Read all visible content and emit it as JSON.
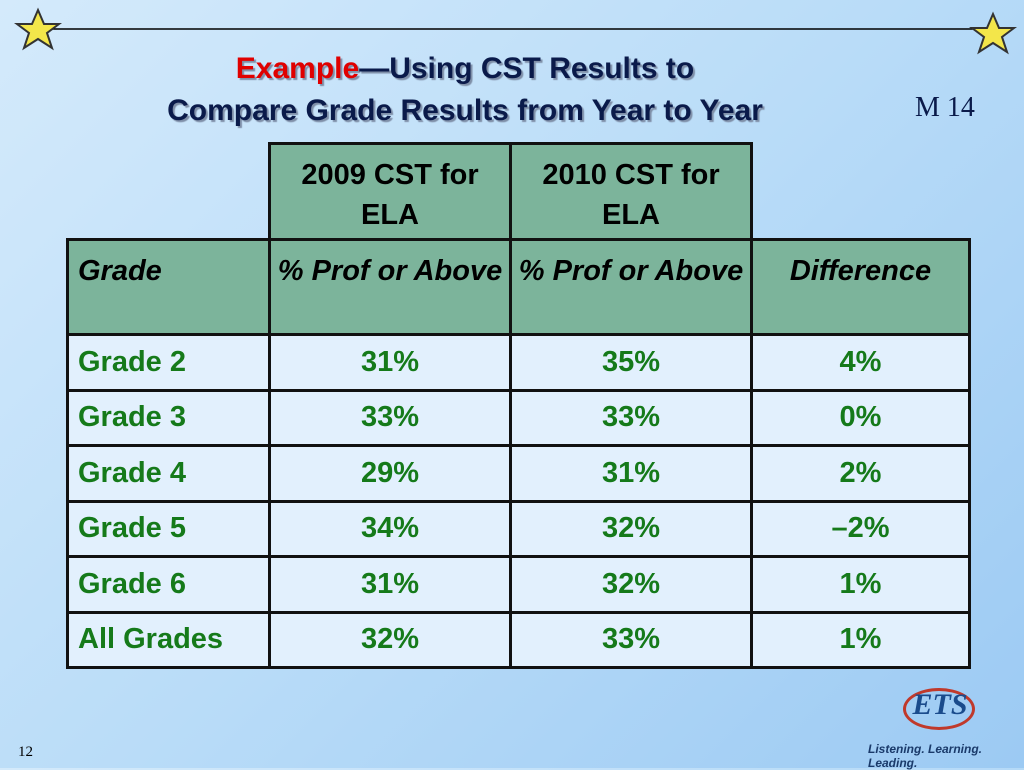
{
  "header": {
    "title_highlight": "Example",
    "title_rest": "—Using CST Results to",
    "title_line2": "Compare Grade Results from Year to Year",
    "slide_code": "M 14"
  },
  "table": {
    "top_headers": [
      "2009 CST for ELA",
      "2010 CST for ELA"
    ],
    "header": [
      "Grade",
      "% Prof or Above",
      "% Prof or Above",
      "Difference"
    ],
    "rows": [
      [
        "Grade 2",
        "31%",
        "35%",
        "4%"
      ],
      [
        "Grade 3",
        "33%",
        "33%",
        "0%"
      ],
      [
        "Grade 4",
        "29%",
        "31%",
        "2%"
      ],
      [
        "Grade 5",
        "34%",
        "32%",
        "–2%"
      ],
      [
        "Grade 6",
        "31%",
        "32%",
        "1%"
      ],
      [
        "All Grades",
        "32%",
        "33%",
        "1%"
      ]
    ]
  },
  "footer": {
    "page_number": "12",
    "logo": "ETS",
    "tagline": "Listening. Learning. Leading."
  }
}
